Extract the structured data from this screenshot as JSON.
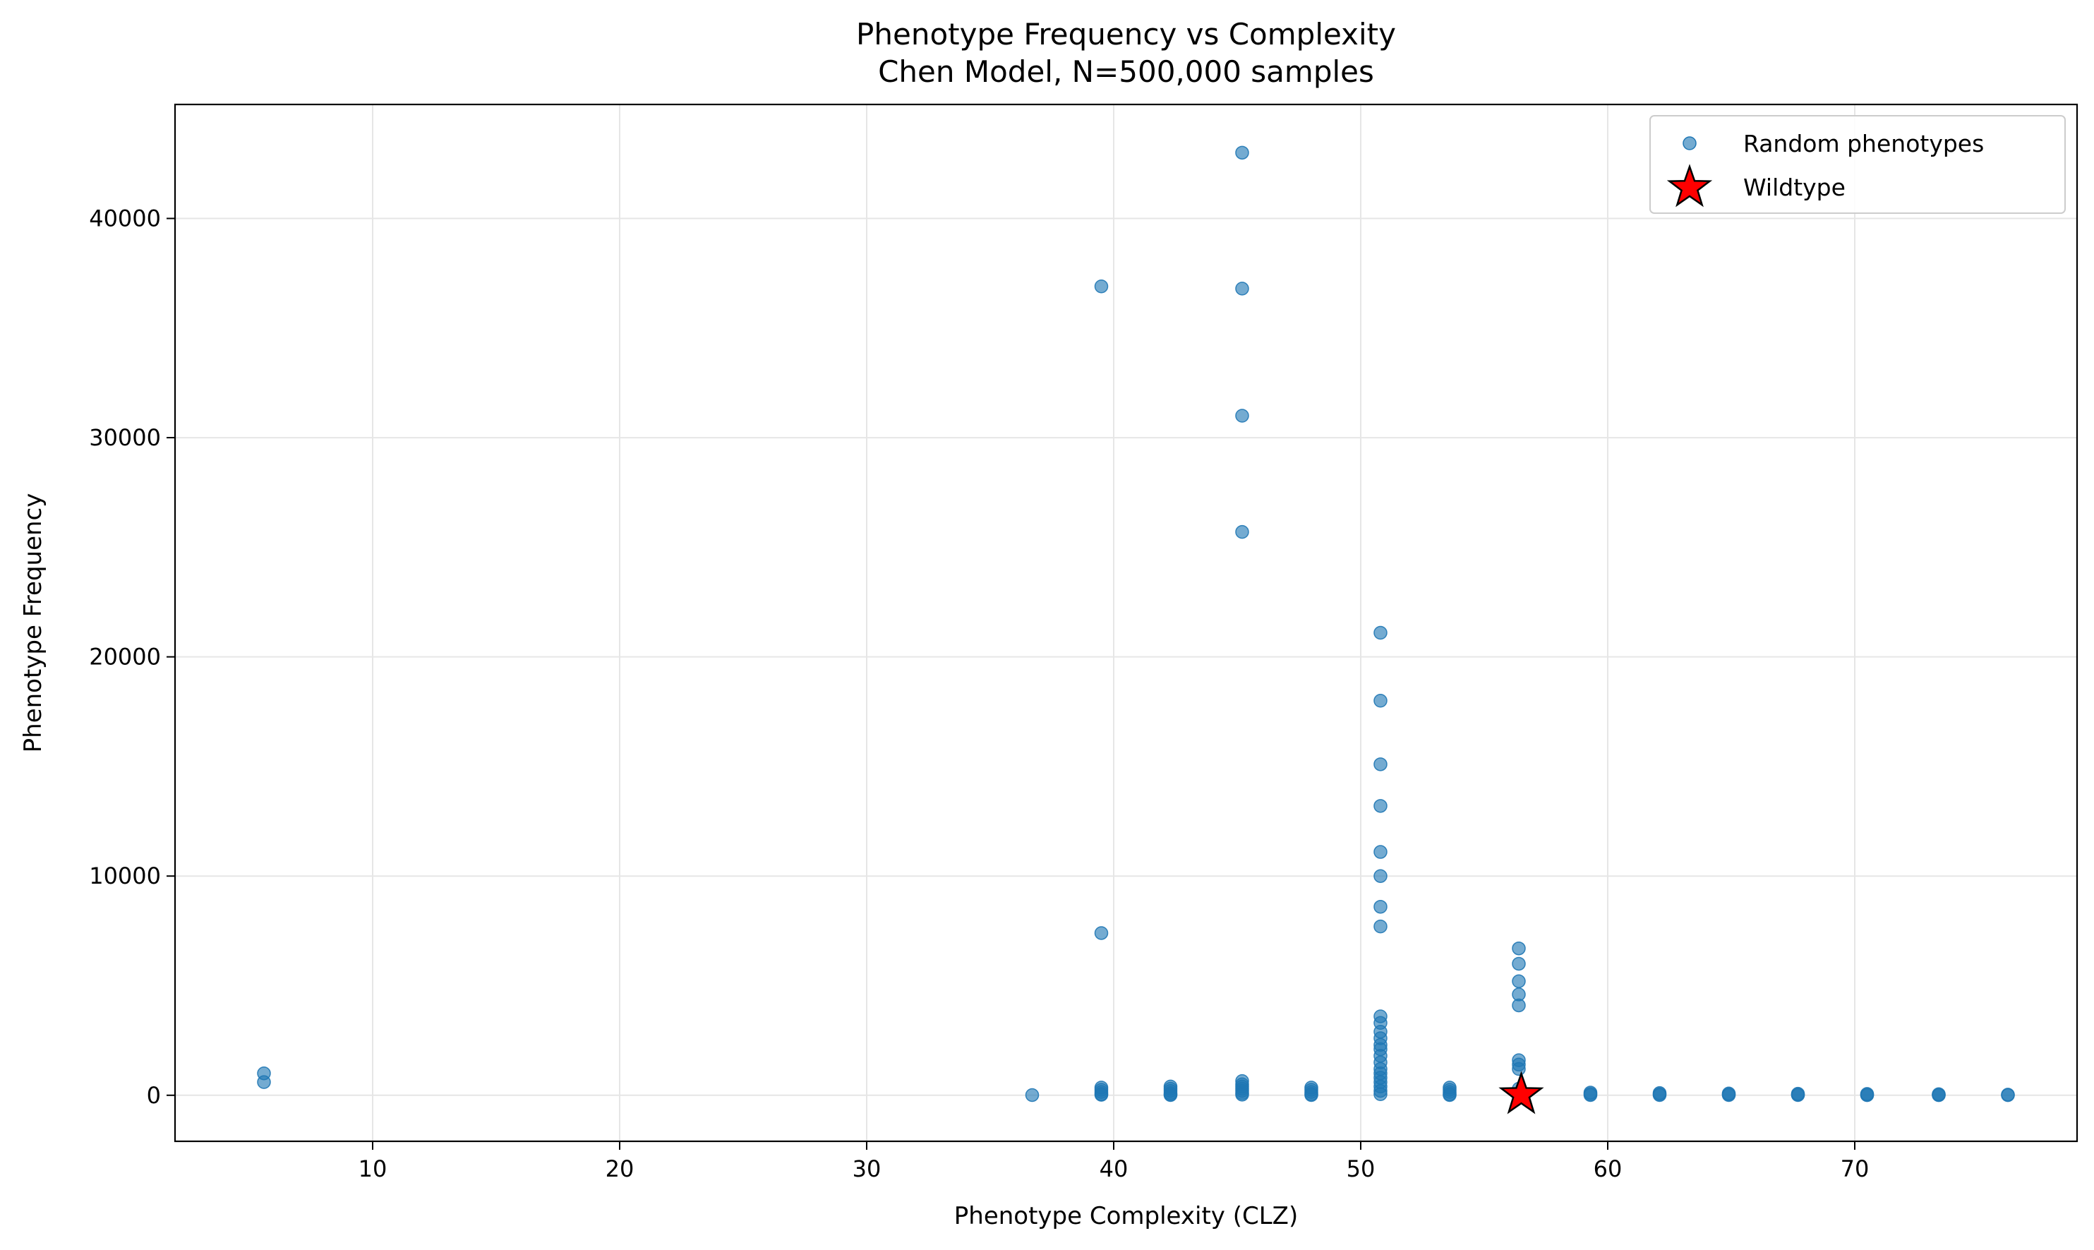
{
  "chart_data": {
    "type": "scatter",
    "title": "Phenotype Frequency vs Complexity",
    "subtitle": "Chen Model, N=500,000 samples",
    "xlabel": "Phenotype Complexity (CLZ)",
    "ylabel": "Phenotype Frequency",
    "xlim": [
      2,
      79
    ],
    "ylim": [
      -2100,
      45200
    ],
    "xticks": [
      10,
      20,
      30,
      40,
      50,
      60,
      70
    ],
    "yticks": [
      0,
      10000,
      20000,
      30000,
      40000
    ],
    "grid": true,
    "legend_position": "top-right",
    "colors": {
      "random": "#1f77b4",
      "wildtype_fill": "#ff0000",
      "wildtype_edge": "#000000",
      "grid": "#e6e6e6"
    },
    "series": [
      {
        "name": "Random phenotypes",
        "marker": "circle",
        "points": [
          [
            5.6,
            1000
          ],
          [
            5.6,
            600
          ],
          [
            36.7,
            10
          ],
          [
            39.5,
            36900
          ],
          [
            39.5,
            7400
          ],
          [
            39.5,
            350
          ],
          [
            39.5,
            250
          ],
          [
            39.5,
            150
          ],
          [
            39.5,
            60
          ],
          [
            39.5,
            20
          ],
          [
            42.3,
            400
          ],
          [
            42.3,
            300
          ],
          [
            42.3,
            200
          ],
          [
            42.3,
            100
          ],
          [
            42.3,
            40
          ],
          [
            42.3,
            10
          ],
          [
            45.2,
            43000
          ],
          [
            45.2,
            36800
          ],
          [
            45.2,
            31000
          ],
          [
            45.2,
            25700
          ],
          [
            45.2,
            650
          ],
          [
            45.2,
            500
          ],
          [
            45.2,
            400
          ],
          [
            45.2,
            300
          ],
          [
            45.2,
            200
          ],
          [
            45.2,
            100
          ],
          [
            45.2,
            30
          ],
          [
            48.0,
            350
          ],
          [
            48.0,
            250
          ],
          [
            48.0,
            150
          ],
          [
            48.0,
            60
          ],
          [
            48.0,
            10
          ],
          [
            50.8,
            21100
          ],
          [
            50.8,
            18000
          ],
          [
            50.8,
            15100
          ],
          [
            50.8,
            13200
          ],
          [
            50.8,
            11100
          ],
          [
            50.8,
            10000
          ],
          [
            50.8,
            8600
          ],
          [
            50.8,
            7700
          ],
          [
            50.8,
            3600
          ],
          [
            50.8,
            3300
          ],
          [
            50.8,
            2900
          ],
          [
            50.8,
            2600
          ],
          [
            50.8,
            2300
          ],
          [
            50.8,
            2100
          ],
          [
            50.8,
            1800
          ],
          [
            50.8,
            1500
          ],
          [
            50.8,
            1200
          ],
          [
            50.8,
            1000
          ],
          [
            50.8,
            800
          ],
          [
            50.8,
            600
          ],
          [
            50.8,
            400
          ],
          [
            50.8,
            200
          ],
          [
            50.8,
            50
          ],
          [
            53.6,
            350
          ],
          [
            53.6,
            250
          ],
          [
            53.6,
            150
          ],
          [
            53.6,
            60
          ],
          [
            53.6,
            10
          ],
          [
            56.4,
            6700
          ],
          [
            56.4,
            6000
          ],
          [
            56.4,
            5200
          ],
          [
            56.4,
            4600
          ],
          [
            56.4,
            4100
          ],
          [
            56.4,
            1600
          ],
          [
            56.4,
            1400
          ],
          [
            56.4,
            1200
          ],
          [
            56.4,
            300
          ],
          [
            56.4,
            100
          ],
          [
            59.3,
            120
          ],
          [
            59.3,
            60
          ],
          [
            59.3,
            10
          ],
          [
            62.1,
            100
          ],
          [
            62.1,
            50
          ],
          [
            62.1,
            10
          ],
          [
            64.9,
            80
          ],
          [
            64.9,
            40
          ],
          [
            64.9,
            10
          ],
          [
            67.7,
            70
          ],
          [
            67.7,
            30
          ],
          [
            67.7,
            10
          ],
          [
            70.5,
            60
          ],
          [
            70.5,
            20
          ],
          [
            70.5,
            5
          ],
          [
            73.4,
            50
          ],
          [
            73.4,
            15
          ],
          [
            73.4,
            5
          ],
          [
            76.2,
            30
          ],
          [
            76.2,
            5
          ]
        ]
      },
      {
        "name": "Wildtype",
        "marker": "star",
        "points": [
          [
            56.5,
            20
          ]
        ]
      }
    ]
  }
}
